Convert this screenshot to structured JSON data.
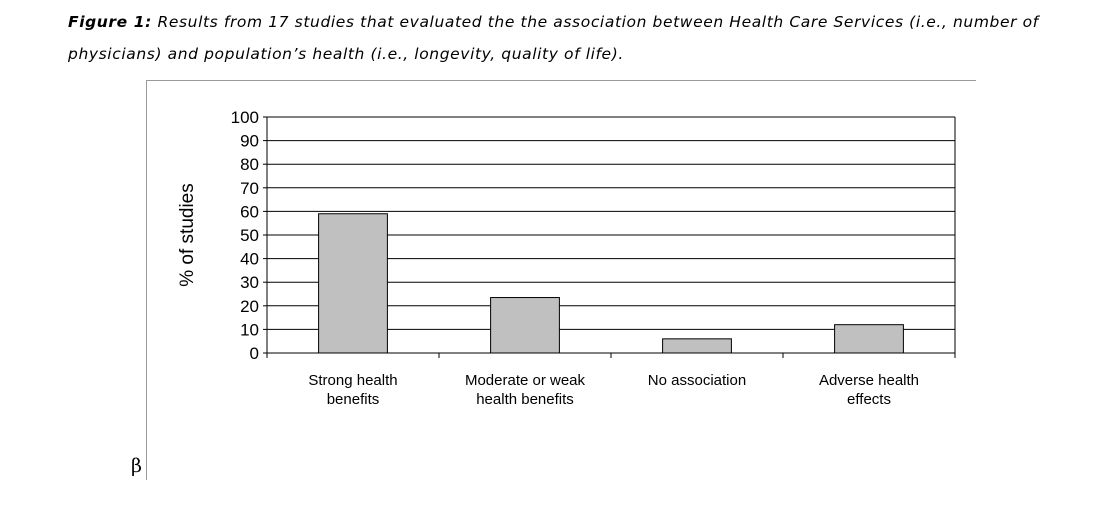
{
  "caption": {
    "lead": "Figure 1:",
    "text": " Results from 17 studies that evaluated the the association between Health Care Services (i.e., number of physicians) and population’s health (i.e., longevity, quality of life)."
  },
  "footnote_symbol": "β",
  "chart_data": {
    "type": "bar",
    "categories": [
      [
        "Strong health",
        "benefits"
      ],
      [
        "Moderate or weak",
        "health benefits"
      ],
      [
        "No association"
      ],
      [
        "Adverse health",
        "effects"
      ]
    ],
    "values": [
      59,
      23.5,
      6,
      12
    ],
    "ylabel": "% of studies",
    "xlabel": "",
    "ylim": [
      0,
      100
    ],
    "yticks": [
      0,
      10,
      20,
      30,
      40,
      50,
      60,
      70,
      80,
      90,
      100
    ],
    "grid": true,
    "legend": "none",
    "colors": {
      "bar_fill": "#c0c0c0",
      "bar_stroke": "#000000",
      "grid": "#000000"
    }
  }
}
